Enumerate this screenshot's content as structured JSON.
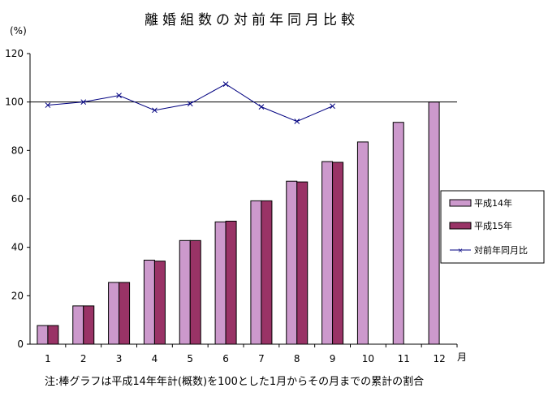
{
  "chart_data": {
    "type": "bar",
    "title": "離婚組数の対前年同月比較",
    "ylabel": "(%)",
    "xlabel": "月",
    "note": "注:棒グラフは平成14年年計(概数)を100とした1月からその月までの累計の割合",
    "ylim": [
      0,
      120
    ],
    "yticks": [
      "0",
      "20",
      "40",
      "60",
      "80",
      "100",
      "120"
    ],
    "categories": [
      "1",
      "2",
      "3",
      "4",
      "5",
      "6",
      "7",
      "8",
      "9",
      "10",
      "11",
      "12"
    ],
    "reference_line": 100,
    "legend_position": "right",
    "series": [
      {
        "name": "平成14年",
        "type": "bar",
        "color": "#cc99cc",
        "values": [
          7.7,
          15.8,
          25.5,
          34.7,
          42.8,
          50.5,
          59.2,
          67.3,
          75.4,
          83.5,
          91.6,
          100
        ]
      },
      {
        "name": "平成15年",
        "type": "bar",
        "color": "#993366",
        "values": [
          7.7,
          15.8,
          25.5,
          34.3,
          42.8,
          50.8,
          59.2,
          67.0,
          75.1,
          null,
          null,
          null
        ]
      },
      {
        "name": "対前年同月比",
        "type": "line",
        "marker": "x",
        "color": "#000080",
        "values": [
          98.7,
          100,
          102.7,
          96.6,
          99.3,
          107.4,
          98.0,
          92.0,
          98.3,
          null,
          null,
          null
        ]
      }
    ]
  }
}
